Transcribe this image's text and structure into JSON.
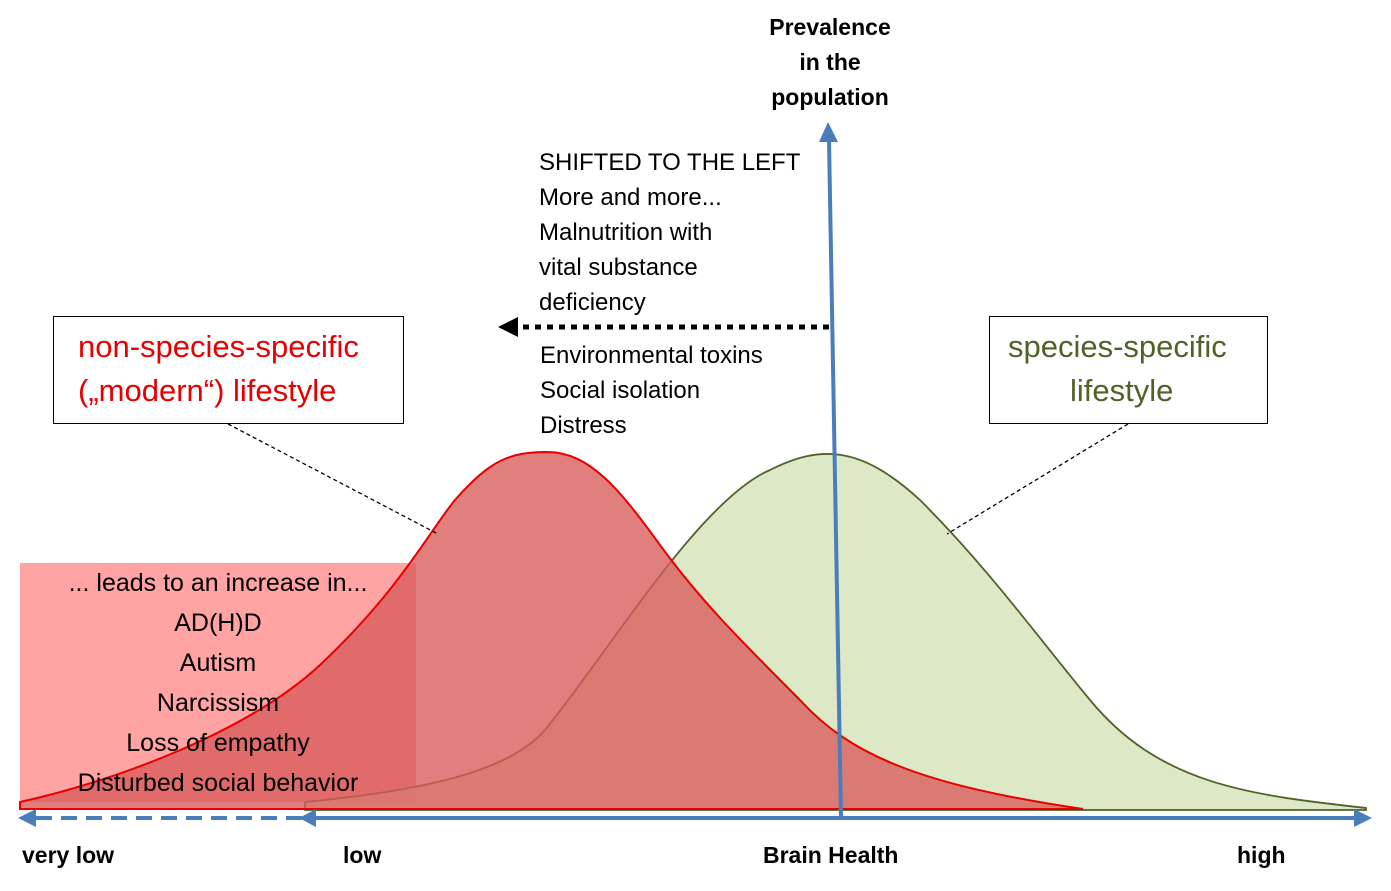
{
  "axis": {
    "y_title": [
      "Prevalence",
      "in the",
      "population"
    ],
    "x_title": "Brain Health",
    "ticks": {
      "very_low": "very low",
      "low": "low",
      "high": "high"
    }
  },
  "shift_note": {
    "top_lines": [
      "SHIFTED TO THE LEFT",
      "More and more...",
      "Malnutrition with",
      "vital substance",
      "deficiency"
    ],
    "bottom_lines": [
      "Environmental toxins",
      "Social isolation",
      "Distress"
    ]
  },
  "modern_lifestyle": {
    "line1": "non-species-specific",
    "line2": "(„modern“) lifestyle",
    "color": "#e60000",
    "fill": "#d95b5b"
  },
  "species_lifestyle": {
    "line1": "species-specific",
    "line2": "lifestyle",
    "color": "#4f6228",
    "fill": "#d7e4bd"
  },
  "effects": {
    "lines": [
      "... leads to an increase in...",
      "AD(H)D",
      "Autism",
      "Narcissism",
      "Loss of empathy",
      "Disturbed social behavior"
    ],
    "fill": "#ff8080"
  },
  "colors": {
    "axis": "#4a7ebb",
    "arrow": "#000000"
  }
}
